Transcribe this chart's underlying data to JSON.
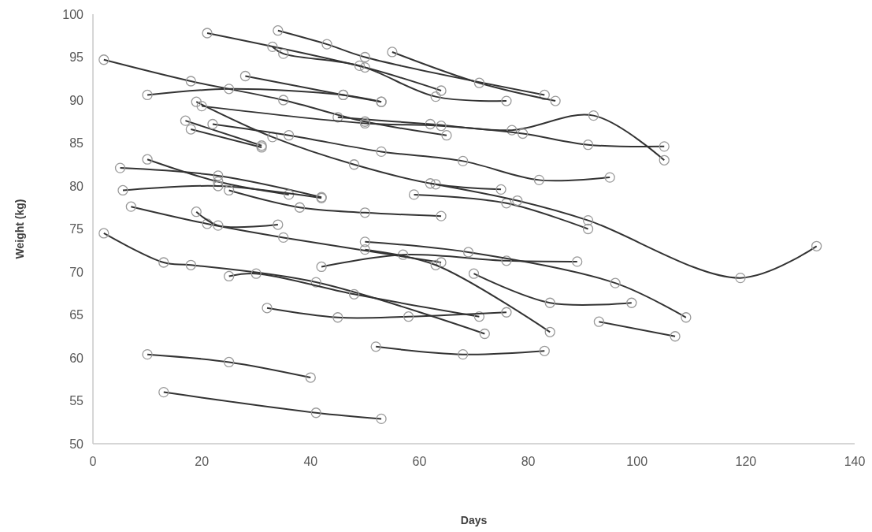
{
  "chart_data": {
    "type": "line",
    "xlabel": "Days",
    "ylabel": "Weight (kg)",
    "xlim": [
      0,
      140
    ],
    "xticks": [
      0,
      20,
      40,
      60,
      80,
      100,
      120,
      140
    ],
    "ylim": [
      50,
      100
    ],
    "yticks": [
      50,
      55,
      60,
      65,
      70,
      75,
      80,
      85,
      90,
      95,
      100
    ],
    "marker": "circle",
    "line_style": "solid",
    "grid": false,
    "series": [
      {
        "color": "#333333",
        "x": [
          21,
          50,
          64
        ],
        "values": [
          97.8,
          93.8,
          91.1
        ]
      },
      {
        "color": "#333333",
        "x": [
          34,
          43,
          50,
          83
        ],
        "values": [
          98.1,
          96.5,
          95,
          90.6
        ]
      },
      {
        "color": "#333333",
        "x": [
          33,
          35,
          49,
          63,
          76
        ],
        "values": [
          96.2,
          95.4,
          94,
          90.4,
          89.9
        ]
      },
      {
        "color": "#333333",
        "x": [
          55,
          71,
          85
        ],
        "values": [
          95.6,
          92,
          89.9
        ]
      },
      {
        "color": "#333333",
        "x": [
          2,
          18,
          35,
          50,
          65
        ],
        "values": [
          94.7,
          92.2,
          90,
          87.5,
          85.9
        ]
      },
      {
        "color": "#333333",
        "x": [
          10,
          25,
          46,
          53
        ],
        "values": [
          90.6,
          91.3,
          90.6,
          89.8
        ]
      },
      {
        "color": "#333333",
        "x": [
          28,
          46,
          53
        ],
        "values": [
          92.8,
          90.6,
          89.8
        ]
      },
      {
        "color": "#333333",
        "x": [
          19,
          33,
          48,
          63,
          75
        ],
        "values": [
          89.8,
          85.7,
          82.5,
          80.2,
          79.6
        ]
      },
      {
        "color": "#333333",
        "x": [
          17,
          31
        ],
        "values": [
          87.6,
          84.7
        ]
      },
      {
        "color": "#333333",
        "x": [
          18,
          31
        ],
        "values": [
          86.6,
          84.5
        ]
      },
      {
        "color": "#333333",
        "x": [
          22,
          36,
          53,
          68,
          82,
          95
        ],
        "values": [
          87.2,
          85.9,
          84,
          82.9,
          80.7,
          81
        ]
      },
      {
        "color": "#333333",
        "x": [
          45,
          62,
          77,
          92,
          105
        ],
        "values": [
          88,
          87.2,
          86.5,
          88.2,
          83
        ]
      },
      {
        "color": "#333333",
        "x": [
          20,
          50,
          64,
          79,
          91,
          105
        ],
        "values": [
          89.3,
          87.3,
          87,
          86.1,
          84.8,
          84.6
        ]
      },
      {
        "color": "#333333",
        "x": [
          5,
          23,
          42
        ],
        "values": [
          82.1,
          81.2,
          78.7
        ]
      },
      {
        "color": "#333333",
        "x": [
          10,
          23,
          36
        ],
        "values": [
          83.1,
          80.5,
          79
        ]
      },
      {
        "color": "#333333",
        "x": [
          5.5,
          23,
          42
        ],
        "values": [
          79.5,
          80,
          78.6
        ]
      },
      {
        "color": "#333333",
        "x": [
          7,
          21,
          35,
          64
        ],
        "values": [
          77.6,
          75.6,
          74,
          71.1
        ]
      },
      {
        "color": "#333333",
        "x": [
          19,
          23,
          34
        ],
        "values": [
          77,
          75.4,
          75.5
        ]
      },
      {
        "color": "#333333",
        "x": [
          2,
          13,
          18,
          41,
          72
        ],
        "values": [
          74.5,
          71.1,
          70.8,
          68.8,
          62.8
        ]
      },
      {
        "color": "#333333",
        "x": [
          25,
          30,
          48,
          71
        ],
        "values": [
          69.5,
          69.8,
          67.4,
          64.8
        ]
      },
      {
        "color": "#333333",
        "x": [
          42,
          57,
          76,
          89
        ],
        "values": [
          70.6,
          72,
          71.3,
          71.2
        ]
      },
      {
        "color": "#333333",
        "x": [
          50,
          63,
          84
        ],
        "values": [
          72.6,
          70.8,
          63
        ]
      },
      {
        "color": "#333333",
        "x": [
          59,
          76,
          91
        ],
        "values": [
          79,
          78,
          75
        ]
      },
      {
        "color": "#333333",
        "x": [
          25,
          38,
          50,
          64
        ],
        "values": [
          79.5,
          77.5,
          76.9,
          76.5
        ]
      },
      {
        "color": "#333333",
        "x": [
          62,
          78,
          91,
          119,
          133
        ],
        "values": [
          80.3,
          78.3,
          76,
          69.3,
          73
        ]
      },
      {
        "color": "#333333",
        "x": [
          70,
          84,
          99
        ],
        "values": [
          69.8,
          66.4,
          66.4
        ]
      },
      {
        "color": "#333333",
        "x": [
          50,
          69,
          96,
          109
        ],
        "values": [
          73.5,
          72.3,
          68.7,
          64.7
        ]
      },
      {
        "color": "#333333",
        "x": [
          93,
          107
        ],
        "values": [
          64.2,
          62.5
        ]
      },
      {
        "color": "#333333",
        "x": [
          32,
          45,
          58,
          76
        ],
        "values": [
          65.8,
          64.7,
          64.8,
          65.3
        ]
      },
      {
        "color": "#333333",
        "x": [
          52,
          68,
          83
        ],
        "values": [
          61.3,
          60.4,
          60.8
        ]
      },
      {
        "color": "#333333",
        "x": [
          10,
          25,
          40
        ],
        "values": [
          60.4,
          59.5,
          57.7
        ]
      },
      {
        "color": "#333333",
        "x": [
          13,
          41,
          53
        ],
        "values": [
          56,
          53.6,
          52.9
        ]
      }
    ]
  }
}
